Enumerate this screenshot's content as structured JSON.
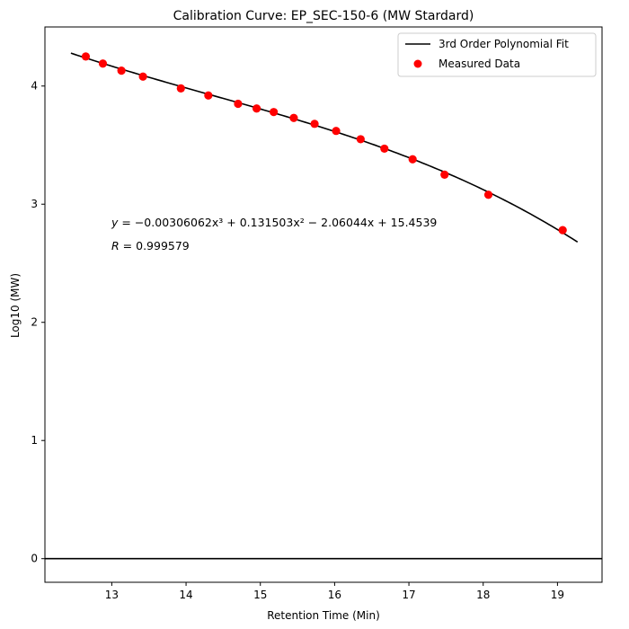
{
  "chart_data": {
    "type": "scatter",
    "title": "Calibration Curve: EP_SEC-150-6 (MW Stardard)",
    "xlabel": "Retention Time (Min)",
    "ylabel": "Log10 (MW)",
    "xlim": [
      12.1,
      19.6
    ],
    "ylim": [
      -0.2,
      4.5
    ],
    "xticks": [
      "13",
      "14",
      "15",
      "16",
      "17",
      "18",
      "19"
    ],
    "yticks": [
      "0",
      "1",
      "2",
      "3",
      "4"
    ],
    "grid": false,
    "legend_position": "top-right",
    "horizontal_line_y": 0,
    "series": [
      {
        "name": "3rd Order Polynomial Fit",
        "kind": "line",
        "color": "#000000",
        "coefficients": [
          -0.00306062,
          0.131503,
          -2.06044,
          15.4539
        ],
        "x_range": [
          12.45,
          19.27
        ]
      },
      {
        "name": "Measured Data",
        "kind": "scatter",
        "color": "#ff0000",
        "x": [
          12.65,
          12.88,
          13.13,
          13.42,
          13.93,
          14.3,
          14.7,
          14.95,
          15.18,
          15.45,
          15.73,
          16.02,
          16.35,
          16.67,
          17.05,
          17.48,
          18.07,
          19.07
        ],
        "y": [
          4.25,
          4.19,
          4.13,
          4.08,
          3.98,
          3.92,
          3.85,
          3.81,
          3.78,
          3.73,
          3.68,
          3.62,
          3.55,
          3.47,
          3.38,
          3.25,
          3.08,
          2.78
        ]
      }
    ],
    "annotations": {
      "equation": "= −0.00306062x³ + 0.131503x² − 2.06044x + 15.4539",
      "equation_var": "y",
      "r_var": "R",
      "r_value": " = 0.999579"
    }
  }
}
